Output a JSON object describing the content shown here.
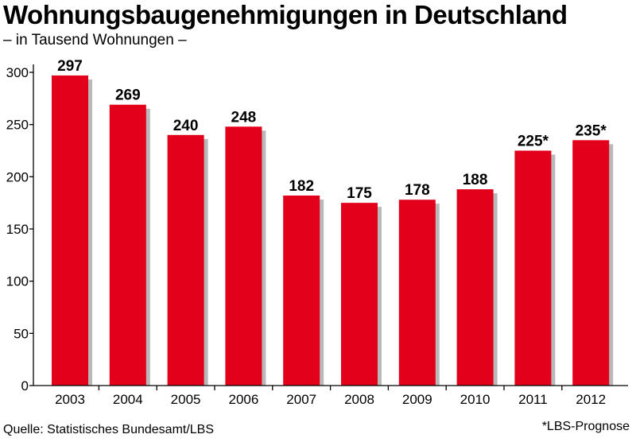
{
  "chart_data": {
    "type": "bar",
    "title": "Wohnungsbaugenehmigungen in Deutschland",
    "subtitle": "– in Tausend Wohnungen –",
    "categories": [
      "2003",
      "2004",
      "2005",
      "2006",
      "2007",
      "2008",
      "2009",
      "2010",
      "2011",
      "2012"
    ],
    "values": [
      297,
      269,
      240,
      248,
      182,
      175,
      178,
      188,
      225,
      235
    ],
    "value_labels": [
      "297",
      "269",
      "240",
      "248",
      "182",
      "175",
      "178",
      "188",
      "225*",
      "235*"
    ],
    "yticks": [
      0,
      50,
      100,
      150,
      200,
      250,
      300
    ],
    "ylim": [
      0,
      300
    ],
    "grid": false,
    "colors": {
      "bar": "#e2001a",
      "shadow": "#b9b9b9",
      "axis": "#000000"
    }
  },
  "source": "Quelle: Statistisches Bundesamt/LBS",
  "footnote": "*LBS-Prognose"
}
